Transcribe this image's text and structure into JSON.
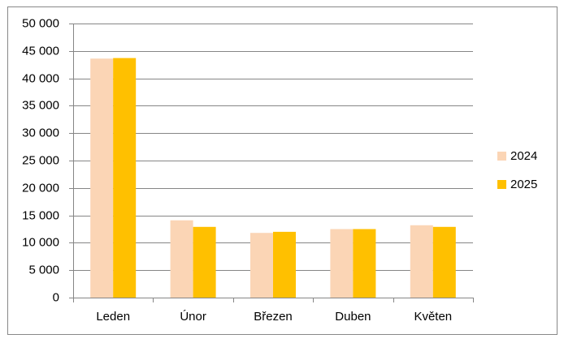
{
  "chart_data": {
    "type": "bar",
    "categories": [
      "Leden",
      "Únor",
      "Březen",
      "Duben",
      "Květen"
    ],
    "series": [
      {
        "name": "2024",
        "color": "#fbd5b5",
        "values": [
          43600,
          14100,
          11800,
          12500,
          13200
        ]
      },
      {
        "name": "2025",
        "color": "#ffc000",
        "values": [
          43700,
          12900,
          12000,
          12500,
          12900
        ]
      }
    ],
    "ylim": [
      0,
      50000
    ],
    "yticks": [
      0,
      {
        "value": 5000,
        "label": "5 000"
      },
      {
        "value": 10000,
        "label": "10 000"
      },
      {
        "value": 15000,
        "label": "15 000"
      },
      {
        "value": 20000,
        "label": "20 000"
      },
      {
        "value": 25000,
        "label": "25 000"
      },
      {
        "value": 30000,
        "label": "30 000"
      },
      {
        "value": 35000,
        "label": "35 000"
      },
      {
        "value": 40000,
        "label": "40 000"
      },
      {
        "value": 45000,
        "label": "45 000"
      },
      {
        "value": 50000,
        "label": "50 000"
      }
    ],
    "grid": true,
    "legend": "right"
  }
}
